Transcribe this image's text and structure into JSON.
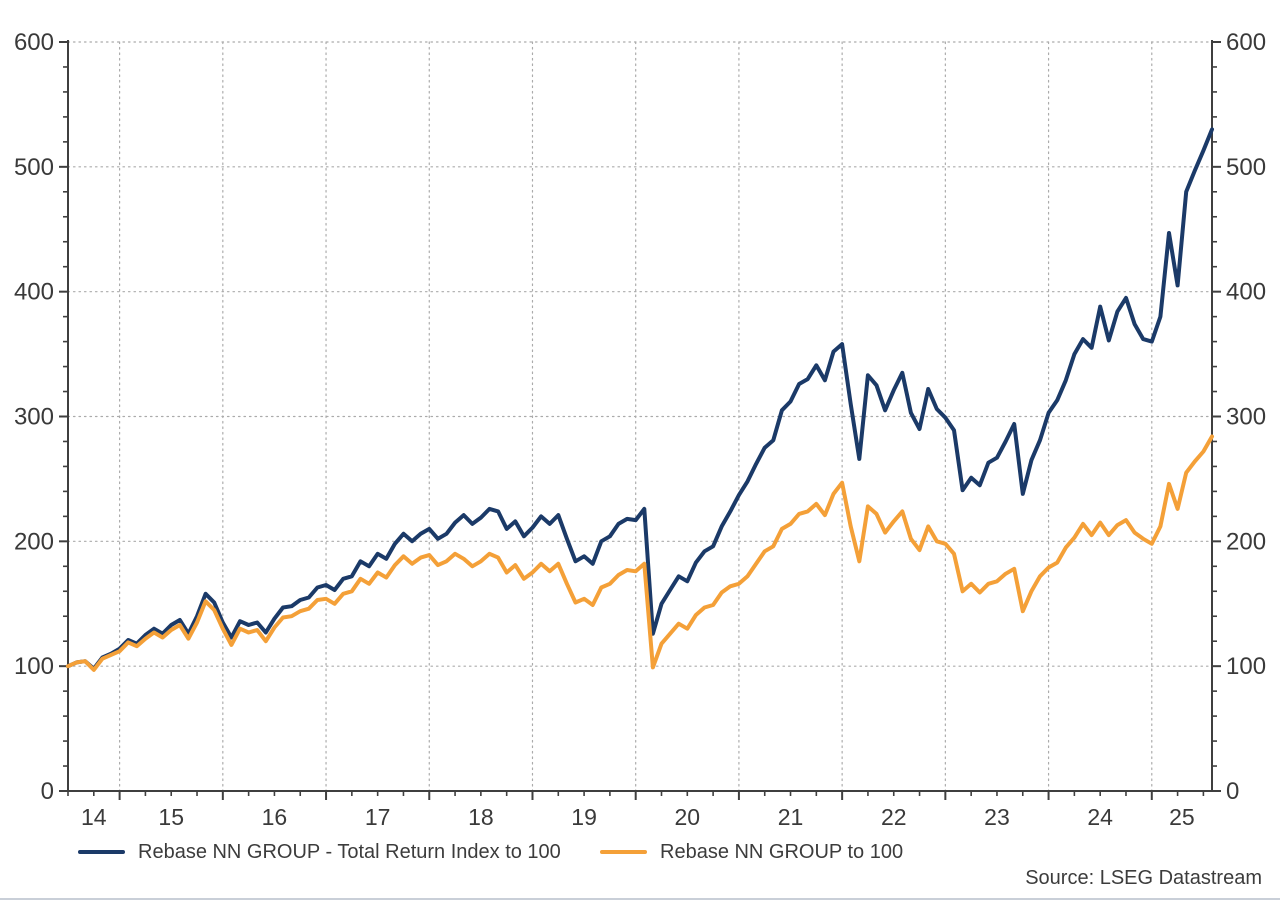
{
  "source_note": "Source: LSEG Datastream",
  "colors": {
    "total_return_line": "#1b3a68",
    "price_line": "#f4a038",
    "axis": "#3f3f3f",
    "tick_label": "#3a3a3a",
    "gridline": "#ababab",
    "bottom_border": "#c9cfd8"
  },
  "chart_data": {
    "type": "line",
    "title": "",
    "xlabel": "",
    "ylabel": "",
    "grid": "dotted horizontal at 100-unit majors, dotted vertical at year boundaries",
    "legend_position": "bottom-left",
    "x_start": {
      "year": 2014,
      "month": 7
    },
    "x_step_months": 1,
    "x_axis": {
      "year_labels": [
        "14",
        "15",
        "16",
        "17",
        "18",
        "19",
        "20",
        "21",
        "22",
        "23",
        "24",
        "25"
      ],
      "first_year": 2014,
      "minor_tick_months": 3
    },
    "y_axis": {
      "min": 0,
      "max": 600,
      "major_step": 100,
      "minor_step": 20,
      "tick_labels": [
        "0",
        "100",
        "200",
        "300",
        "400",
        "500",
        "600"
      ],
      "labels_on_both_sides": true
    },
    "series": [
      {
        "name": "Rebase NN GROUP - Total Return Index to 100",
        "color": "#1b3a68",
        "values": [
          100,
          103,
          104,
          98,
          107,
          110,
          114,
          121,
          118,
          125,
          130,
          126,
          133,
          137,
          126,
          140,
          158,
          151,
          135,
          123,
          136,
          133,
          135,
          127,
          138,
          147,
          148,
          153,
          155,
          163,
          165,
          161,
          170,
          172,
          184,
          180,
          190,
          186,
          198,
          206,
          200,
          206,
          210,
          202,
          206,
          215,
          221,
          214,
          219,
          226,
          224,
          210,
          216,
          204,
          211,
          220,
          214,
          221,
          202,
          184,
          188,
          182,
          200,
          204,
          214,
          218,
          217,
          226,
          126,
          150,
          161,
          172,
          168,
          183,
          192,
          196,
          212,
          224,
          237,
          248,
          262,
          275,
          281,
          305,
          312,
          326,
          330,
          341,
          329,
          352,
          358,
          310,
          266,
          333,
          325,
          305,
          321,
          335,
          303,
          290,
          322,
          306,
          299,
          289,
          241,
          251,
          245,
          263,
          267,
          280,
          294,
          238,
          265,
          281,
          303,
          313,
          329,
          350,
          362,
          355,
          388,
          361,
          384,
          395,
          374,
          362,
          360,
          380,
          447,
          405,
          480,
          497,
          513,
          530
        ]
      },
      {
        "name": "Rebase NN GROUP to 100",
        "color": "#f4a038",
        "values": [
          100,
          103,
          104,
          97,
          106,
          109,
          112,
          119,
          116,
          122,
          127,
          123,
          129,
          133,
          122,
          135,
          152,
          145,
          130,
          117,
          130,
          127,
          129,
          120,
          131,
          139,
          140,
          144,
          146,
          153,
          154,
          150,
          158,
          160,
          170,
          166,
          175,
          171,
          181,
          188,
          182,
          187,
          189,
          181,
          184,
          190,
          186,
          180,
          184,
          190,
          187,
          175,
          181,
          170,
          175,
          182,
          176,
          182,
          166,
          151,
          154,
          149,
          163,
          166,
          173,
          177,
          176,
          182,
          99,
          118,
          126,
          134,
          130,
          141,
          147,
          149,
          159,
          164,
          166,
          172,
          182,
          192,
          196,
          210,
          214,
          222,
          224,
          230,
          221,
          238,
          247,
          212,
          184,
          228,
          222,
          207,
          216,
          224,
          202,
          193,
          212,
          200,
          198,
          190,
          160,
          166,
          159,
          166,
          168,
          174,
          178,
          144,
          160,
          172,
          179,
          183,
          195,
          203,
          214,
          205,
          215,
          205,
          213,
          217,
          207,
          202,
          198,
          212,
          246,
          226,
          255,
          264,
          272,
          284
        ]
      }
    ]
  }
}
